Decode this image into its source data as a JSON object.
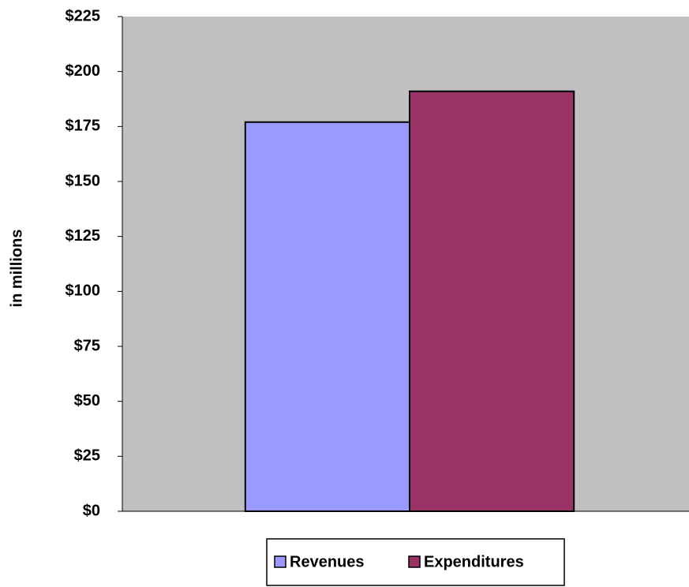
{
  "chart_data": {
    "type": "bar",
    "y_label": "in millions",
    "categories": [
      null
    ],
    "series": [
      {
        "name": "Revenues",
        "color": "#9999ff",
        "values": [
          177
        ]
      },
      {
        "name": "Expenditures",
        "color": "#993366",
        "values": [
          191
        ]
      }
    ],
    "ylim": [
      0,
      225
    ],
    "yticks": [
      {
        "value": 0,
        "label": "$0"
      },
      {
        "value": 25,
        "label": "$25"
      },
      {
        "value": 50,
        "label": "$50"
      },
      {
        "value": 75,
        "label": "$75"
      },
      {
        "value": 100,
        "label": "$100"
      },
      {
        "value": 125,
        "label": "$125"
      },
      {
        "value": 150,
        "label": "$150"
      },
      {
        "value": 175,
        "label": "$175"
      },
      {
        "value": 200,
        "label": "$200"
      },
      {
        "value": 225,
        "label": "$225"
      }
    ],
    "plot_background": "#c0c0c0",
    "legend": "bottom"
  }
}
